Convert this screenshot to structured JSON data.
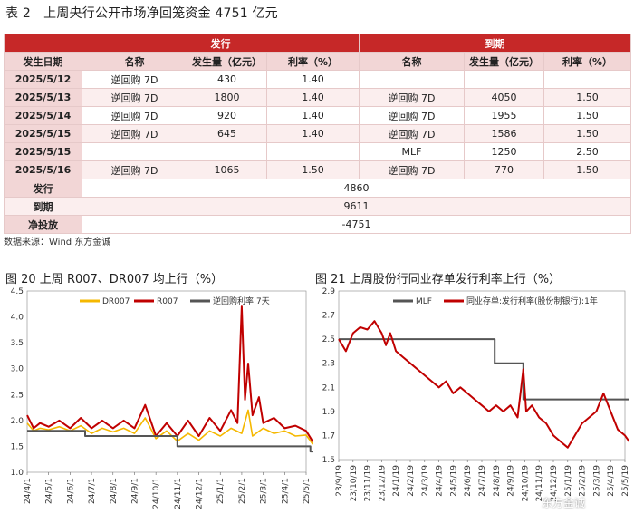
{
  "table": {
    "title": "表 2　上周央行公开市场净回笼资金 4751 亿元",
    "group_issue": "发行",
    "group_due": "到期",
    "headers": [
      "发生日期",
      "名称",
      "发生量（亿元）",
      "利率（%）",
      "名称",
      "发生量（亿元）",
      "利率（%）"
    ],
    "rows": [
      [
        "2025/5/12",
        "逆回购 7D",
        "430",
        "1.40",
        "",
        "",
        ""
      ],
      [
        "2025/5/13",
        "逆回购 7D",
        "1800",
        "1.40",
        "逆回购 7D",
        "4050",
        "1.50"
      ],
      [
        "2025/5/14",
        "逆回购 7D",
        "920",
        "1.40",
        "逆回购 7D",
        "1955",
        "1.50"
      ],
      [
        "2025/5/15",
        "逆回购 7D",
        "645",
        "1.40",
        "逆回购 7D",
        "1586",
        "1.50"
      ],
      [
        "2025/5/15",
        "",
        "",
        "",
        "MLF",
        "1250",
        "2.50"
      ],
      [
        "2025/5/16",
        "逆回购 7D",
        "1065",
        "1.50",
        "逆回购 7D",
        "770",
        "1.50"
      ]
    ],
    "summary": [
      {
        "label": "发行",
        "value": "4860"
      },
      {
        "label": "到期",
        "value": "9611"
      },
      {
        "label": "净投放",
        "value": "-4751"
      }
    ],
    "source": "数据来源：Wind 东方金诚"
  },
  "chart_data": [
    {
      "type": "line",
      "title": "图 20 上周 R007、DR007 均上行（%）",
      "ylim": [
        1.0,
        4.5
      ],
      "yticks": [
        "4.5",
        "4.0",
        "3.5",
        "3.0",
        "2.5",
        "2.0",
        "1.5",
        "1.0"
      ],
      "x_ticks": [
        "24/4/1",
        "24/5/1",
        "24/6/1",
        "24/7/1",
        "24/8/1",
        "24/9/1",
        "24/10/1",
        "24/11/1",
        "24/12/1",
        "25/1/1",
        "25/2/1",
        "25/3/1",
        "25/4/1",
        "25/5/1"
      ],
      "colors": {
        "DR007": "#f5b800",
        "R007": "#c00000",
        "逆回购利率:7天": "#555555"
      },
      "series": [
        {
          "name": "DR007",
          "points": [
            [
              0,
              1.95
            ],
            [
              0.3,
              1.8
            ],
            [
              0.6,
              1.85
            ],
            [
              1,
              1.82
            ],
            [
              1.5,
              1.88
            ],
            [
              2,
              1.8
            ],
            [
              2.5,
              1.9
            ],
            [
              3,
              1.75
            ],
            [
              3.5,
              1.85
            ],
            [
              4,
              1.78
            ],
            [
              4.5,
              1.85
            ],
            [
              5,
              1.75
            ],
            [
              5.5,
              2.05
            ],
            [
              6,
              1.65
            ],
            [
              6.5,
              1.8
            ],
            [
              7,
              1.6
            ],
            [
              7.5,
              1.75
            ],
            [
              8,
              1.62
            ],
            [
              8.5,
              1.8
            ],
            [
              9,
              1.7
            ],
            [
              9.5,
              1.85
            ],
            [
              10,
              1.75
            ],
            [
              10.3,
              2.2
            ],
            [
              10.5,
              1.7
            ],
            [
              11,
              1.85
            ],
            [
              11.5,
              1.75
            ],
            [
              12,
              1.8
            ],
            [
              12.5,
              1.7
            ],
            [
              13,
              1.72
            ],
            [
              13.3,
              1.55
            ],
            [
              13.5,
              1.65
            ]
          ]
        },
        {
          "name": "R007",
          "points": [
            [
              0,
              2.1
            ],
            [
              0.3,
              1.85
            ],
            [
              0.6,
              1.95
            ],
            [
              1,
              1.88
            ],
            [
              1.5,
              2.0
            ],
            [
              2,
              1.85
            ],
            [
              2.5,
              2.05
            ],
            [
              3,
              1.85
            ],
            [
              3.5,
              2.0
            ],
            [
              4,
              1.85
            ],
            [
              4.5,
              2.0
            ],
            [
              5,
              1.85
            ],
            [
              5.5,
              2.3
            ],
            [
              6,
              1.7
            ],
            [
              6.5,
              1.95
            ],
            [
              7,
              1.7
            ],
            [
              7.5,
              2.0
            ],
            [
              8,
              1.7
            ],
            [
              8.5,
              2.05
            ],
            [
              9,
              1.8
            ],
            [
              9.5,
              2.2
            ],
            [
              9.8,
              1.95
            ],
            [
              10.0,
              4.2
            ],
            [
              10.15,
              2.4
            ],
            [
              10.3,
              3.1
            ],
            [
              10.5,
              2.1
            ],
            [
              10.8,
              2.45
            ],
            [
              11,
              1.95
            ],
            [
              11.5,
              2.05
            ],
            [
              12,
              1.85
            ],
            [
              12.5,
              1.9
            ],
            [
              13,
              1.8
            ],
            [
              13.3,
              1.6
            ],
            [
              13.5,
              1.75
            ]
          ]
        },
        {
          "name": "逆回购利率:7天",
          "points": [
            [
              0,
              1.8
            ],
            [
              2.7,
              1.8
            ],
            [
              2.7,
              1.7
            ],
            [
              7,
              1.7
            ],
            [
              7,
              1.5
            ],
            [
              13.2,
              1.5
            ],
            [
              13.2,
              1.4
            ],
            [
              13.6,
              1.4
            ]
          ]
        }
      ]
    },
    {
      "type": "line",
      "title": "图 21 上周股份行同业存单发行利率上行（%）",
      "ylim": [
        1.5,
        2.9
      ],
      "yticks": [
        "2.9",
        "2.7",
        "2.5",
        "2.3",
        "2.1",
        "1.9",
        "1.7",
        "1.5"
      ],
      "x_ticks": [
        "23/9/19",
        "23/10/19",
        "23/11/19",
        "23/12/19",
        "24/1/19",
        "24/2/19",
        "24/3/19",
        "24/4/19",
        "24/5/19",
        "24/6/19",
        "24/7/19",
        "24/8/19",
        "24/9/19",
        "24/10/19",
        "24/11/19",
        "24/12/19",
        "25/1/19",
        "25/2/19",
        "25/3/19",
        "25/4/19",
        "25/5/19"
      ],
      "colors": {
        "MLF": "#555555",
        "同业存单:发行利率(股份制银行):1年": "#c00000"
      },
      "series": [
        {
          "name": "MLF",
          "points": [
            [
              0,
              2.5
            ],
            [
              10.9,
              2.5
            ],
            [
              10.9,
              2.3
            ],
            [
              12.9,
              2.3
            ],
            [
              12.9,
              2.0
            ],
            [
              20.3,
              2.0
            ]
          ]
        },
        {
          "name": "同业存单:发行利率(股份制银行):1年",
          "points": [
            [
              0,
              2.5
            ],
            [
              0.5,
              2.4
            ],
            [
              1,
              2.55
            ],
            [
              1.5,
              2.6
            ],
            [
              2,
              2.58
            ],
            [
              2.5,
              2.65
            ],
            [
              3,
              2.55
            ],
            [
              3.3,
              2.45
            ],
            [
              3.6,
              2.55
            ],
            [
              4,
              2.4
            ],
            [
              4.5,
              2.35
            ],
            [
              5,
              2.3
            ],
            [
              5.5,
              2.25
            ],
            [
              6,
              2.2
            ],
            [
              6.5,
              2.15
            ],
            [
              7,
              2.1
            ],
            [
              7.5,
              2.15
            ],
            [
              8,
              2.05
            ],
            [
              8.5,
              2.1
            ],
            [
              9,
              2.05
            ],
            [
              9.5,
              2.0
            ],
            [
              10,
              1.95
            ],
            [
              10.5,
              1.9
            ],
            [
              11,
              1.95
            ],
            [
              11.5,
              1.9
            ],
            [
              12,
              1.95
            ],
            [
              12.5,
              1.85
            ],
            [
              12.9,
              2.25
            ],
            [
              13.1,
              1.9
            ],
            [
              13.5,
              1.95
            ],
            [
              14,
              1.85
            ],
            [
              14.5,
              1.8
            ],
            [
              15,
              1.7
            ],
            [
              15.5,
              1.65
            ],
            [
              16,
              1.6
            ],
            [
              16.5,
              1.7
            ],
            [
              17,
              1.8
            ],
            [
              17.5,
              1.85
            ],
            [
              18,
              1.9
            ],
            [
              18.5,
              2.05
            ],
            [
              19,
              1.9
            ],
            [
              19.5,
              1.75
            ],
            [
              20,
              1.7
            ],
            [
              20.3,
              1.65
            ]
          ]
        }
      ]
    }
  ],
  "watermark": "东方金诚"
}
